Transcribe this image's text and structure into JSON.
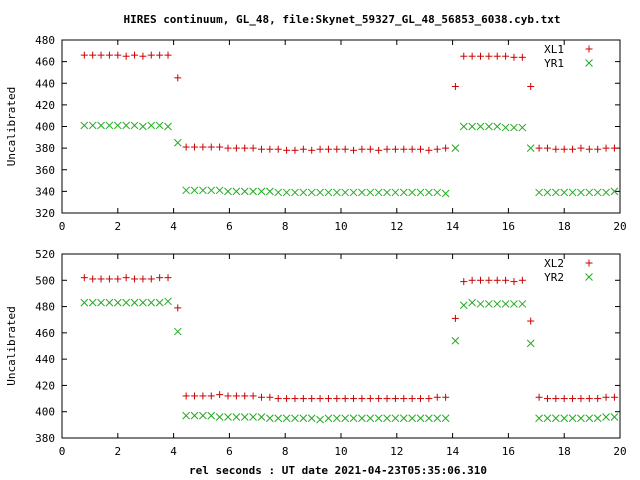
{
  "title": "HIRES continuum, GL_48, file:Skynet_59327_GL_48_56853_6038.cyb.txt",
  "xlabel": "rel seconds : UT date 2021-04-23T05:35:06.310",
  "colors": {
    "plus_series": "#cc0000",
    "x_series": "#22aa22",
    "axis": "#000000"
  },
  "chart_data": [
    {
      "type": "scatter",
      "ylabel": "Uncalibrated",
      "xlim": [
        0,
        20
      ],
      "ylim": [
        320,
        480
      ],
      "x_ticks": [
        0,
        2,
        4,
        6,
        8,
        10,
        12,
        14,
        16,
        18,
        20
      ],
      "y_ticks": [
        320,
        340,
        360,
        380,
        400,
        420,
        440,
        460,
        480
      ],
      "legend_position": "top-right",
      "x": [
        0.8,
        1.1,
        1.4,
        1.7,
        2.0,
        2.3,
        2.6,
        2.9,
        3.2,
        3.5,
        3.8,
        4.15,
        4.45,
        4.75,
        5.05,
        5.35,
        5.65,
        5.95,
        6.25,
        6.55,
        6.85,
        7.15,
        7.45,
        7.75,
        8.05,
        8.35,
        8.65,
        8.95,
        9.25,
        9.55,
        9.85,
        10.15,
        10.45,
        10.75,
        11.05,
        11.35,
        11.65,
        11.95,
        12.25,
        12.55,
        12.85,
        13.15,
        13.45,
        13.75,
        14.1,
        14.4,
        14.7,
        15.0,
        15.3,
        15.6,
        15.9,
        16.2,
        16.5,
        16.8,
        17.1,
        17.4,
        17.7,
        18.0,
        18.3,
        18.6,
        18.9,
        19.2,
        19.5,
        19.8
      ],
      "series": [
        {
          "name": "XL1",
          "marker": "plus",
          "values": [
            466,
            466,
            466,
            466,
            466,
            465,
            466,
            465,
            466,
            466,
            466,
            445,
            381,
            381,
            381,
            381,
            381,
            380,
            380,
            380,
            380,
            379,
            379,
            379,
            378,
            378,
            379,
            378,
            379,
            379,
            379,
            379,
            378,
            379,
            379,
            378,
            379,
            379,
            379,
            379,
            379,
            378,
            379,
            380,
            437,
            465,
            465,
            465,
            465,
            465,
            465,
            464,
            464,
            437,
            380,
            380,
            379,
            379,
            379,
            380,
            379,
            379,
            380,
            380
          ]
        },
        {
          "name": "YR1",
          "marker": "cross",
          "values": [
            401,
            401,
            401,
            401,
            401,
            401,
            401,
            400,
            401,
            401,
            400,
            385,
            341,
            341,
            341,
            341,
            341,
            340,
            340,
            340,
            340,
            340,
            340,
            339,
            339,
            339,
            339,
            339,
            339,
            339,
            339,
            339,
            339,
            339,
            339,
            339,
            339,
            339,
            339,
            339,
            339,
            339,
            339,
            338,
            380,
            400,
            400,
            400,
            400,
            400,
            399,
            399,
            399,
            380,
            339,
            339,
            339,
            339,
            339,
            339,
            339,
            339,
            339,
            340
          ]
        }
      ]
    },
    {
      "type": "scatter",
      "ylabel": "Uncalibrated",
      "xlim": [
        0,
        20
      ],
      "ylim": [
        380,
        520
      ],
      "x_ticks": [
        0,
        2,
        4,
        6,
        8,
        10,
        12,
        14,
        16,
        18,
        20
      ],
      "y_ticks": [
        380,
        400,
        420,
        440,
        460,
        480,
        500,
        520
      ],
      "legend_position": "top-right",
      "x": [
        0.8,
        1.1,
        1.4,
        1.7,
        2.0,
        2.3,
        2.6,
        2.9,
        3.2,
        3.5,
        3.8,
        4.15,
        4.45,
        4.75,
        5.05,
        5.35,
        5.65,
        5.95,
        6.25,
        6.55,
        6.85,
        7.15,
        7.45,
        7.75,
        8.05,
        8.35,
        8.65,
        8.95,
        9.25,
        9.55,
        9.85,
        10.15,
        10.45,
        10.75,
        11.05,
        11.35,
        11.65,
        11.95,
        12.25,
        12.55,
        12.85,
        13.15,
        13.45,
        13.75,
        14.1,
        14.4,
        14.7,
        15.0,
        15.3,
        15.6,
        15.9,
        16.2,
        16.5,
        16.8,
        17.1,
        17.4,
        17.7,
        18.0,
        18.3,
        18.6,
        18.9,
        19.2,
        19.5,
        19.8
      ],
      "series": [
        {
          "name": "XL2",
          "marker": "plus",
          "values": [
            502,
            501,
            501,
            501,
            501,
            502,
            501,
            501,
            501,
            502,
            502,
            479,
            412,
            412,
            412,
            412,
            413,
            412,
            412,
            412,
            412,
            411,
            411,
            410,
            410,
            410,
            410,
            410,
            410,
            410,
            410,
            410,
            410,
            410,
            410,
            410,
            410,
            410,
            410,
            410,
            410,
            410,
            411,
            411,
            471,
            499,
            500,
            500,
            500,
            500,
            500,
            499,
            500,
            469,
            411,
            410,
            410,
            410,
            410,
            410,
            410,
            410,
            411,
            411
          ]
        },
        {
          "name": "YR2",
          "marker": "cross",
          "values": [
            483,
            483,
            483,
            483,
            483,
            483,
            483,
            483,
            483,
            483,
            484,
            461,
            397,
            397,
            397,
            397,
            396,
            396,
            396,
            396,
            396,
            396,
            395,
            395,
            395,
            395,
            395,
            395,
            394,
            395,
            395,
            395,
            395,
            395,
            395,
            395,
            395,
            395,
            395,
            395,
            395,
            395,
            395,
            395,
            454,
            481,
            483,
            482,
            482,
            482,
            482,
            482,
            482,
            452,
            395,
            395,
            395,
            395,
            395,
            395,
            395,
            395,
            396,
            396
          ]
        }
      ]
    }
  ]
}
